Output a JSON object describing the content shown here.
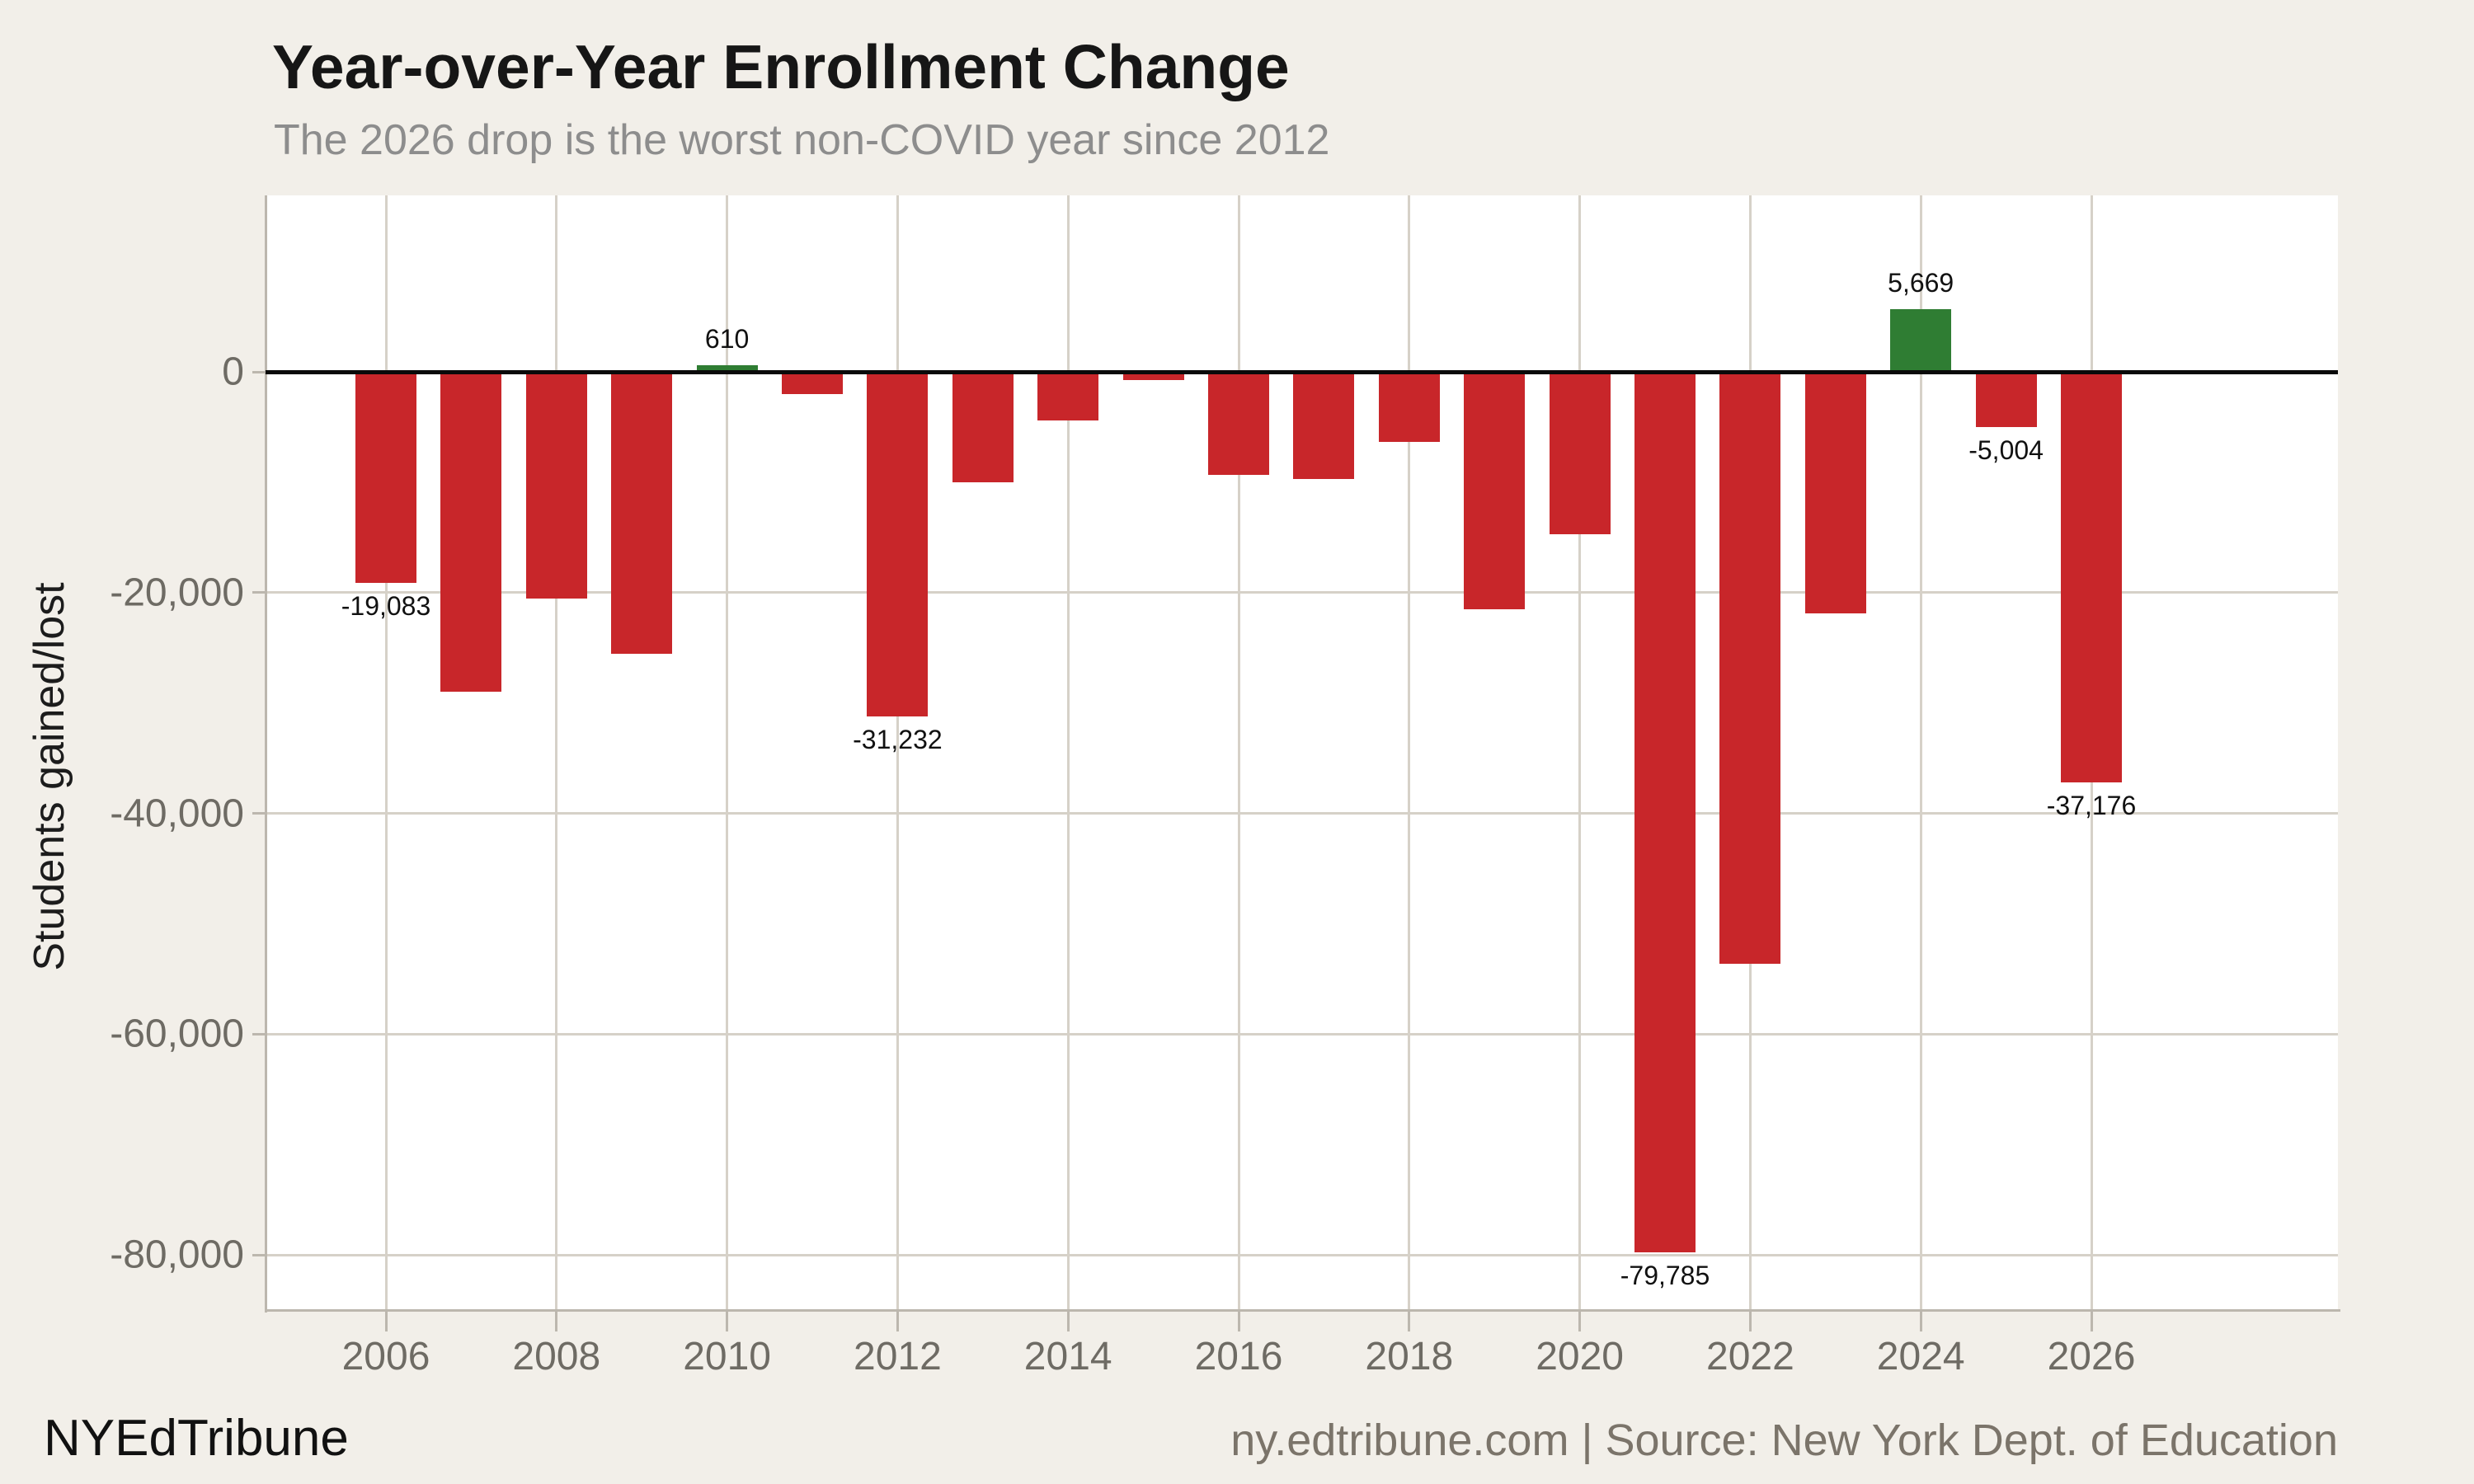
{
  "chart_data": {
    "type": "bar",
    "title": "Year-over-Year Enrollment Change",
    "subtitle": "The 2026 drop is the worst non-COVID year since 2012",
    "ylabel": "Students gained/lost",
    "xlabel": "",
    "categories": [
      2006,
      2007,
      2008,
      2009,
      2010,
      2011,
      2012,
      2013,
      2014,
      2015,
      2016,
      2017,
      2018,
      2019,
      2020,
      2021,
      2022,
      2023,
      2024,
      2025,
      2026
    ],
    "values": [
      -19083,
      -29000,
      -20500,
      -25500,
      610,
      -2000,
      -31232,
      -10000,
      -4400,
      -700,
      -9300,
      -9700,
      -6300,
      -21500,
      -14700,
      -79785,
      -53600,
      -21900,
      5669,
      -5004,
      -37176
    ],
    "value_labels": {
      "2006": "-19,083",
      "2010": "610",
      "2012": "-31,232",
      "2021": "-79,785",
      "2024": "5,669",
      "2025": "-5,004",
      "2026": "-37,176"
    },
    "ylim": [
      -85000,
      16000
    ],
    "yticks": [
      {
        "value": 0,
        "label": "0"
      },
      {
        "value": -20000,
        "label": "-20,000"
      },
      {
        "value": -40000,
        "label": "-40,000"
      },
      {
        "value": -60000,
        "label": "-60,000"
      },
      {
        "value": -80000,
        "label": "-80,000"
      }
    ],
    "xticks": [
      2006,
      2008,
      2010,
      2012,
      2014,
      2016,
      2018,
      2020,
      2022,
      2024,
      2026
    ],
    "grid": true,
    "legend_position": "none",
    "colors": {
      "positive_bar": "#2f7d33",
      "negative_bar": "#c8262a",
      "gridline": "#d6d1c8",
      "spine": "#bcb7ae",
      "zero_line": "#0a0a0a",
      "plot_background": "#ffffff",
      "page_background": "#f2efe9",
      "tick_text": "#6e6b64",
      "title_text": "#161616",
      "subtitle_text": "#8d8d8d",
      "bar_label_text": "#111111",
      "source_text": "#7b746a"
    }
  },
  "footer": {
    "brand": "NYEdTribune",
    "source": "ny.edtribune.com | Source: New York Dept. of Education"
  }
}
